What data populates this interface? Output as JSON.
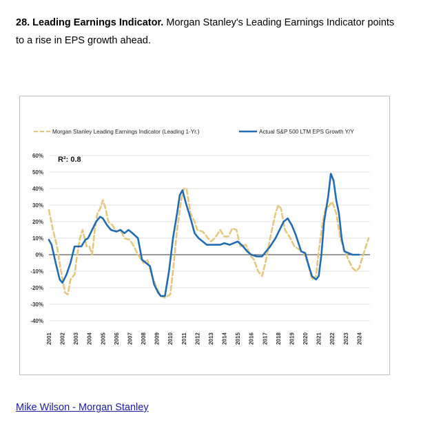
{
  "caption": {
    "title": "28. Leading Earnings Indicator.",
    "text": "Morgan Stanley's Leading Earnings Indicator points to a rise in EPS growth ahead."
  },
  "source_link": "Mike Wilson - Morgan Stanley",
  "chart_data": {
    "type": "line",
    "title": "",
    "annotation": "R²: 0.8",
    "legend_placement": "top",
    "grid": true,
    "ylim": [
      -40,
      60
    ],
    "y_ticks": [
      "60%",
      "50%",
      "40%",
      "30%",
      "20%",
      "10%",
      "0%",
      "-10%",
      "-20%",
      "-30%",
      "-40%"
    ],
    "x_ticks": [
      "2001",
      "2002",
      "2003",
      "2004",
      "2005",
      "2006",
      "2007",
      "2008",
      "2009",
      "2010",
      "2011",
      "2012",
      "2013",
      "2014",
      "2015",
      "2016",
      "2017",
      "2018",
      "2019",
      "2020",
      "2021",
      "2022",
      "2023",
      "2024"
    ],
    "series": [
      {
        "name": "Morgan Stanley Leading Earnings Indicator (Leading 1-Yr.)",
        "color": "#e3c77f",
        "style": "dashed",
        "points": [
          [
            2001.0,
            27
          ],
          [
            2001.3,
            15
          ],
          [
            2001.6,
            5
          ],
          [
            2001.9,
            -10
          ],
          [
            2002.2,
            -23
          ],
          [
            2002.4,
            -24
          ],
          [
            2002.6,
            -15
          ],
          [
            2002.9,
            -12
          ],
          [
            2003.1,
            0
          ],
          [
            2003.3,
            10
          ],
          [
            2003.5,
            15
          ],
          [
            2003.8,
            5
          ],
          [
            2004.0,
            5
          ],
          [
            2004.2,
            0
          ],
          [
            2004.4,
            15
          ],
          [
            2004.6,
            25
          ],
          [
            2004.8,
            28
          ],
          [
            2005.0,
            33
          ],
          [
            2005.2,
            28
          ],
          [
            2005.4,
            20
          ],
          [
            2005.7,
            18
          ],
          [
            2006.0,
            14
          ],
          [
            2006.3,
            15
          ],
          [
            2006.6,
            10
          ],
          [
            2007.0,
            9
          ],
          [
            2007.3,
            5
          ],
          [
            2007.6,
            0
          ],
          [
            2008.0,
            -5
          ],
          [
            2008.3,
            -3
          ],
          [
            2008.6,
            -12
          ],
          [
            2009.0,
            -20
          ],
          [
            2009.3,
            -25
          ],
          [
            2009.6,
            -26
          ],
          [
            2010.0,
            -24
          ],
          [
            2010.2,
            -10
          ],
          [
            2010.5,
            15
          ],
          [
            2010.8,
            33
          ],
          [
            2011.0,
            40
          ],
          [
            2011.2,
            40
          ],
          [
            2011.5,
            25
          ],
          [
            2011.8,
            20
          ],
          [
            2012.0,
            15
          ],
          [
            2012.4,
            14
          ],
          [
            2012.8,
            10
          ],
          [
            2013.0,
            8
          ],
          [
            2013.3,
            10
          ],
          [
            2013.7,
            15
          ],
          [
            2014.0,
            11
          ],
          [
            2014.3,
            11
          ],
          [
            2014.6,
            16
          ],
          [
            2014.9,
            15
          ],
          [
            2015.2,
            5
          ],
          [
            2015.6,
            6
          ],
          [
            2015.9,
            0
          ],
          [
            2016.2,
            -3
          ],
          [
            2016.5,
            -10
          ],
          [
            2016.8,
            -13
          ],
          [
            2017.1,
            -3
          ],
          [
            2017.4,
            10
          ],
          [
            2017.8,
            25
          ],
          [
            2018.0,
            30
          ],
          [
            2018.2,
            28
          ],
          [
            2018.5,
            15
          ],
          [
            2018.9,
            10
          ],
          [
            2019.2,
            5
          ],
          [
            2019.6,
            3
          ],
          [
            2019.9,
            1
          ],
          [
            2020.2,
            -5
          ],
          [
            2020.5,
            -15
          ],
          [
            2020.8,
            -13
          ],
          [
            2021.0,
            2
          ],
          [
            2021.3,
            20
          ],
          [
            2021.5,
            28
          ],
          [
            2021.7,
            29
          ],
          [
            2022.0,
            32
          ],
          [
            2022.3,
            25
          ],
          [
            2022.6,
            10
          ],
          [
            2022.9,
            3
          ],
          [
            2023.2,
            -3
          ],
          [
            2023.5,
            -8
          ],
          [
            2023.8,
            -10
          ],
          [
            2024.0,
            -8
          ],
          [
            2024.3,
            0
          ],
          [
            2024.7,
            10
          ]
        ]
      },
      {
        "name": "Actual S&P 500 LTM EPS Growth Y/Y",
        "color": "#1f6cb4",
        "style": "solid",
        "points": [
          [
            2001.0,
            9
          ],
          [
            2001.2,
            6
          ],
          [
            2001.5,
            -5
          ],
          [
            2001.8,
            -15
          ],
          [
            2002.0,
            -17
          ],
          [
            2002.3,
            -12
          ],
          [
            2002.6,
            -5
          ],
          [
            2002.9,
            5
          ],
          [
            2003.1,
            5
          ],
          [
            2003.4,
            5
          ],
          [
            2003.7,
            9
          ],
          [
            2003.9,
            10
          ],
          [
            2004.2,
            15
          ],
          [
            2004.5,
            20
          ],
          [
            2004.8,
            23
          ],
          [
            2005.0,
            22
          ],
          [
            2005.3,
            18
          ],
          [
            2005.6,
            15
          ],
          [
            2006.0,
            14
          ],
          [
            2006.3,
            15
          ],
          [
            2006.6,
            13
          ],
          [
            2006.9,
            15
          ],
          [
            2007.2,
            13
          ],
          [
            2007.6,
            10
          ],
          [
            2007.9,
            -3
          ],
          [
            2008.2,
            -5
          ],
          [
            2008.5,
            -7
          ],
          [
            2008.8,
            -18
          ],
          [
            2009.1,
            -23
          ],
          [
            2009.3,
            -25
          ],
          [
            2009.6,
            -25
          ],
          [
            2009.9,
            -10
          ],
          [
            2010.2,
            10
          ],
          [
            2010.5,
            25
          ],
          [
            2010.7,
            36
          ],
          [
            2010.9,
            39
          ],
          [
            2011.2,
            30
          ],
          [
            2011.5,
            22
          ],
          [
            2011.8,
            13
          ],
          [
            2012.1,
            10
          ],
          [
            2012.4,
            8
          ],
          [
            2012.7,
            6
          ],
          [
            2013.0,
            6
          ],
          [
            2013.4,
            6
          ],
          [
            2013.7,
            6
          ],
          [
            2014.0,
            7
          ],
          [
            2014.4,
            6
          ],
          [
            2014.7,
            7
          ],
          [
            2015.0,
            8
          ],
          [
            2015.4,
            5
          ],
          [
            2015.7,
            2
          ],
          [
            2016.0,
            0
          ],
          [
            2016.4,
            -1
          ],
          [
            2016.8,
            -1
          ],
          [
            2017.1,
            2
          ],
          [
            2017.4,
            5
          ],
          [
            2017.8,
            10
          ],
          [
            2018.1,
            15
          ],
          [
            2018.4,
            20
          ],
          [
            2018.7,
            22
          ],
          [
            2019.0,
            18
          ],
          [
            2019.3,
            12
          ],
          [
            2019.7,
            2
          ],
          [
            2020.0,
            1
          ],
          [
            2020.2,
            -5
          ],
          [
            2020.5,
            -13
          ],
          [
            2020.8,
            -15
          ],
          [
            2021.0,
            -13
          ],
          [
            2021.2,
            0
          ],
          [
            2021.4,
            20
          ],
          [
            2021.7,
            35
          ],
          [
            2021.9,
            49
          ],
          [
            2022.1,
            45
          ],
          [
            2022.3,
            33
          ],
          [
            2022.5,
            25
          ],
          [
            2022.7,
            10
          ],
          [
            2022.9,
            2
          ],
          [
            2023.2,
            1
          ],
          [
            2023.5,
            0
          ],
          [
            2023.8,
            0
          ],
          [
            2024.0,
            0
          ]
        ]
      }
    ]
  }
}
